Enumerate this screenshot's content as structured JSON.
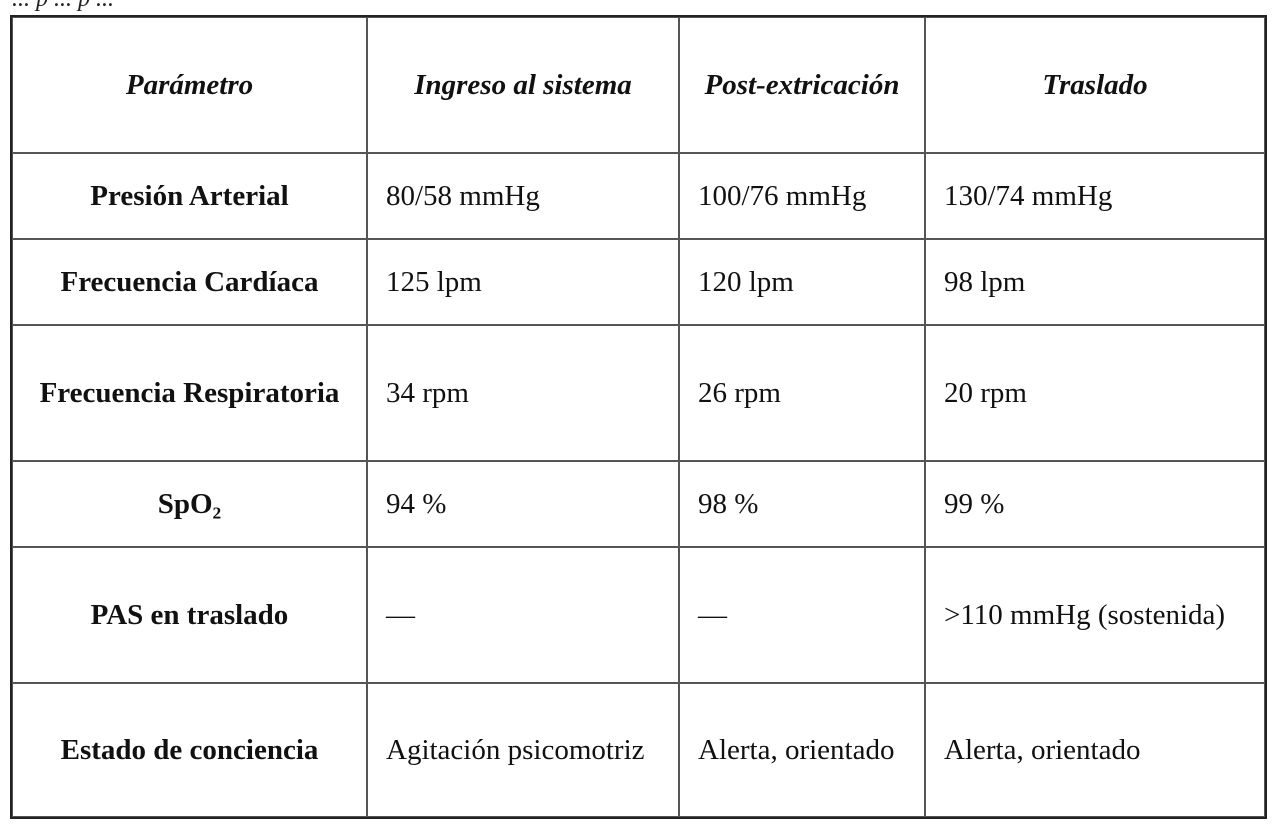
{
  "caption": "... p ... p ...",
  "table": {
    "headers": [
      "Parámetro",
      "Ingreso al sistema",
      "Post-extricación",
      "Traslado"
    ],
    "rows": [
      {
        "param": "Presión Arterial",
        "values": [
          "80/58 mmHg",
          "100/76 mmHg",
          "130/74 mmHg"
        ]
      },
      {
        "param": "Frecuencia Cardíaca",
        "values": [
          "125 lpm",
          "120 lpm",
          "98 lpm"
        ]
      },
      {
        "param": "Frecuencia Respiratoria",
        "values": [
          "34 rpm",
          "26 rpm",
          "20 rpm"
        ]
      },
      {
        "param": "SpO₂",
        "values": [
          "94 %",
          "98 %",
          "99 %"
        ]
      },
      {
        "param": "PAS en traslado",
        "values": [
          "—",
          "—",
          ">110 mmHg (sostenida)"
        ]
      },
      {
        "param": "Estado de conciencia",
        "values": [
          "Agitación psicomotriz",
          "Alerta, orientado",
          "Alerta, orientado"
        ]
      }
    ]
  }
}
